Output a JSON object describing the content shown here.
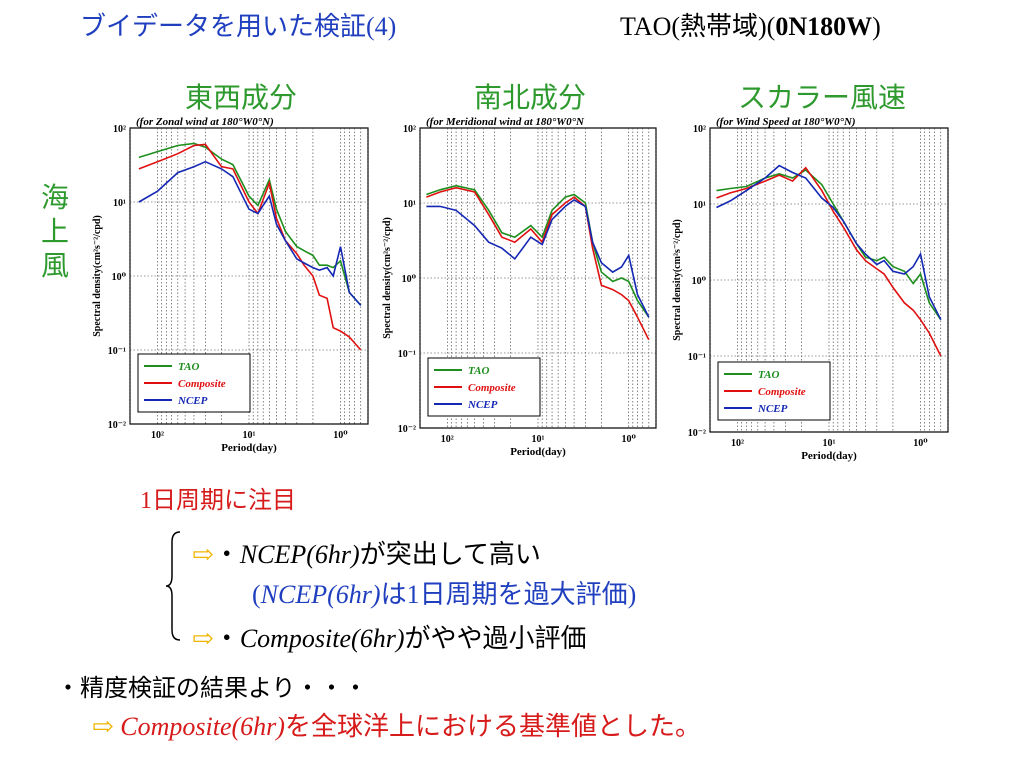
{
  "slide": {
    "title": "ブイデータを用いた検証(4)",
    "subtitle_prefix": "TAO(熱帯域)(",
    "subtitle_bold": "0N180W",
    "subtitle_suffix": ")",
    "row_label": [
      "海",
      "上",
      "風"
    ],
    "column_headers": [
      "東西成分",
      "南北成分",
      "スカラー風速"
    ],
    "note": "1日周期に注目",
    "bullet1_prefix": "・",
    "bullet1_italic": "NCEP(6hr)",
    "bullet1_text": "が突出して高い",
    "bullet2_open": "(",
    "bullet2_italic": "NCEP(6hr)",
    "bullet2_text": "は1日周期を過大評価)",
    "bullet3_prefix": "・",
    "bullet3_italic": "Composite(6hr)",
    "bullet3_text": "がやや過小評価",
    "conclusion1": "・精度検証の結果より・・・",
    "conclusion2_italic": "Composite(6hr)",
    "conclusion2_text": "を全球洋上における基準値とした。",
    "arrow_glyph": "⇨"
  },
  "chart_data": [
    {
      "type": "line",
      "title": "(for Zonal wind at 180°W0°N)",
      "xlabel": "Period(day)",
      "ylabel": "Spectral density(cm²s⁻²/cpd)",
      "x_scale": "log",
      "x_reversed": true,
      "xlim": [
        200,
        0.5
      ],
      "y_scale": "log",
      "ylim": [
        0.01,
        100
      ],
      "x_ticks": [
        "10²",
        "10¹",
        "10⁰"
      ],
      "y_ticks": [
        "10²",
        "10¹",
        "10⁰",
        "10⁻¹",
        "10⁻²"
      ],
      "legend_position": "bottom-left",
      "series": [
        {
          "name": "TAO",
          "color": "#1e8f1e",
          "x": [
            160,
            100,
            60,
            40,
            30,
            20,
            15,
            10,
            8,
            6,
            5,
            4,
            3,
            2.5,
            2,
            1.7,
            1.4,
            1.2,
            1,
            0.8,
            0.6
          ],
          "y": [
            40,
            48,
            58,
            62,
            55,
            38,
            32,
            12,
            9,
            20,
            8,
            4,
            2.5,
            2.2,
            1.9,
            1.4,
            1.4,
            1.3,
            1.6,
            0.6,
            0.4
          ]
        },
        {
          "name": "Composite",
          "color": "#e01010",
          "x": [
            160,
            100,
            60,
            40,
            30,
            20,
            15,
            10,
            8,
            6,
            5,
            4,
            3,
            2.5,
            2,
            1.7,
            1.4,
            1.2,
            1,
            0.8,
            0.6
          ],
          "y": [
            28,
            35,
            45,
            58,
            60,
            30,
            28,
            10,
            7,
            18,
            6,
            3,
            2,
            1.4,
            1,
            0.55,
            0.5,
            0.2,
            0.18,
            0.15,
            0.1
          ]
        },
        {
          "name": "NCEP",
          "color": "#1428b4",
          "x": [
            160,
            100,
            60,
            40,
            30,
            20,
            15,
            10,
            8,
            6,
            5,
            4,
            3,
            2.5,
            2,
            1.7,
            1.4,
            1.2,
            1,
            0.8,
            0.6
          ],
          "y": [
            10,
            14,
            25,
            30,
            35,
            28,
            22,
            8,
            7,
            12,
            5,
            3,
            1.7,
            1.5,
            1.3,
            1.2,
            1.3,
            1,
            2.5,
            0.6,
            0.4
          ]
        }
      ]
    },
    {
      "type": "line",
      "title": "(for Meridional wind at 180°W0°N",
      "xlabel": "Period(day)",
      "ylabel": "Spectral density(cm²s⁻²/cpd)",
      "x_scale": "log",
      "x_reversed": true,
      "xlim": [
        200,
        0.5
      ],
      "y_scale": "log",
      "ylim": [
        0.01,
        100
      ],
      "x_ticks": [
        "10²",
        "10¹",
        "10⁰"
      ],
      "y_ticks": [
        "10²",
        "10¹",
        "10⁰",
        "10⁻¹",
        "10⁻²"
      ],
      "legend_position": "bottom-left",
      "series": [
        {
          "name": "TAO",
          "color": "#1e8f1e",
          "x": [
            170,
            120,
            80,
            50,
            35,
            25,
            18,
            12,
            9,
            7,
            5,
            4,
            3,
            2.5,
            2,
            1.5,
            1.2,
            1,
            0.8,
            0.6
          ],
          "y": [
            13,
            15,
            17,
            15,
            8,
            4,
            3.5,
            5,
            3.5,
            8,
            12,
            13,
            10,
            3,
            1.2,
            0.9,
            1,
            0.9,
            0.5,
            0.3
          ]
        },
        {
          "name": "Composite",
          "color": "#e01010",
          "x": [
            170,
            120,
            80,
            50,
            35,
            25,
            18,
            12,
            9,
            7,
            5,
            4,
            3,
            2.5,
            2,
            1.5,
            1.2,
            1,
            0.8,
            0.6
          ],
          "y": [
            12,
            14,
            16,
            14,
            7,
            3.5,
            3,
            4.5,
            3,
            7,
            10,
            12,
            9,
            2.5,
            0.8,
            0.7,
            0.6,
            0.5,
            0.3,
            0.15
          ]
        },
        {
          "name": "NCEP",
          "color": "#1428b4",
          "x": [
            170,
            120,
            80,
            50,
            35,
            25,
            18,
            12,
            9,
            7,
            5,
            4,
            3,
            2.5,
            2,
            1.5,
            1.2,
            1,
            0.8,
            0.6
          ],
          "y": [
            9,
            9,
            8,
            5,
            3,
            2.5,
            1.8,
            3.5,
            2.8,
            6,
            9,
            11,
            9,
            3,
            1.6,
            1.2,
            1.4,
            2,
            0.6,
            0.3
          ]
        }
      ]
    },
    {
      "type": "line",
      "title": "(for Wind Speed at 180°W0°N)",
      "xlabel": "Period(day)",
      "ylabel": "Spectral density(cm²s⁻²/cpd)",
      "x_scale": "log",
      "x_reversed": true,
      "xlim": [
        200,
        0.5
      ],
      "y_scale": "log",
      "ylim": [
        0.01,
        100
      ],
      "x_ticks": [
        "10²",
        "10¹",
        "10⁰"
      ],
      "y_ticks": [
        "10²",
        "10¹",
        "10⁰",
        "10⁻¹",
        "10⁻²"
      ],
      "legend_position": "bottom-left",
      "series": [
        {
          "name": "TAO",
          "color": "#1e8f1e",
          "x": [
            170,
            120,
            80,
            50,
            35,
            25,
            18,
            12,
            9,
            7,
            5,
            4,
            3,
            2.5,
            2,
            1.5,
            1.2,
            1,
            0.8,
            0.6
          ],
          "y": [
            15,
            16,
            17,
            22,
            25,
            22,
            28,
            18,
            10,
            6,
            3,
            2,
            1.8,
            2,
            1.5,
            1.3,
            0.9,
            1.2,
            0.5,
            0.3
          ]
        },
        {
          "name": "Composite",
          "color": "#e01010",
          "x": [
            170,
            120,
            80,
            50,
            35,
            25,
            18,
            12,
            9,
            7,
            5,
            4,
            3,
            2.5,
            2,
            1.5,
            1.2,
            1,
            0.8,
            0.6
          ],
          "y": [
            12,
            14,
            16,
            20,
            24,
            20,
            30,
            15,
            8,
            5,
            2.5,
            1.8,
            1.4,
            1.2,
            0.8,
            0.5,
            0.4,
            0.3,
            0.2,
            0.1
          ]
        },
        {
          "name": "NCEP",
          "color": "#1428b4",
          "x": [
            170,
            120,
            80,
            50,
            35,
            25,
            18,
            12,
            9,
            7,
            5,
            4,
            3,
            2.5,
            2,
            1.5,
            1.2,
            1,
            0.8,
            0.6
          ],
          "y": [
            9,
            11,
            15,
            22,
            32,
            26,
            22,
            12,
            9,
            6,
            3,
            2.2,
            1.6,
            1.8,
            1.3,
            1.2,
            1.5,
            2.2,
            0.6,
            0.3
          ]
        }
      ]
    }
  ]
}
